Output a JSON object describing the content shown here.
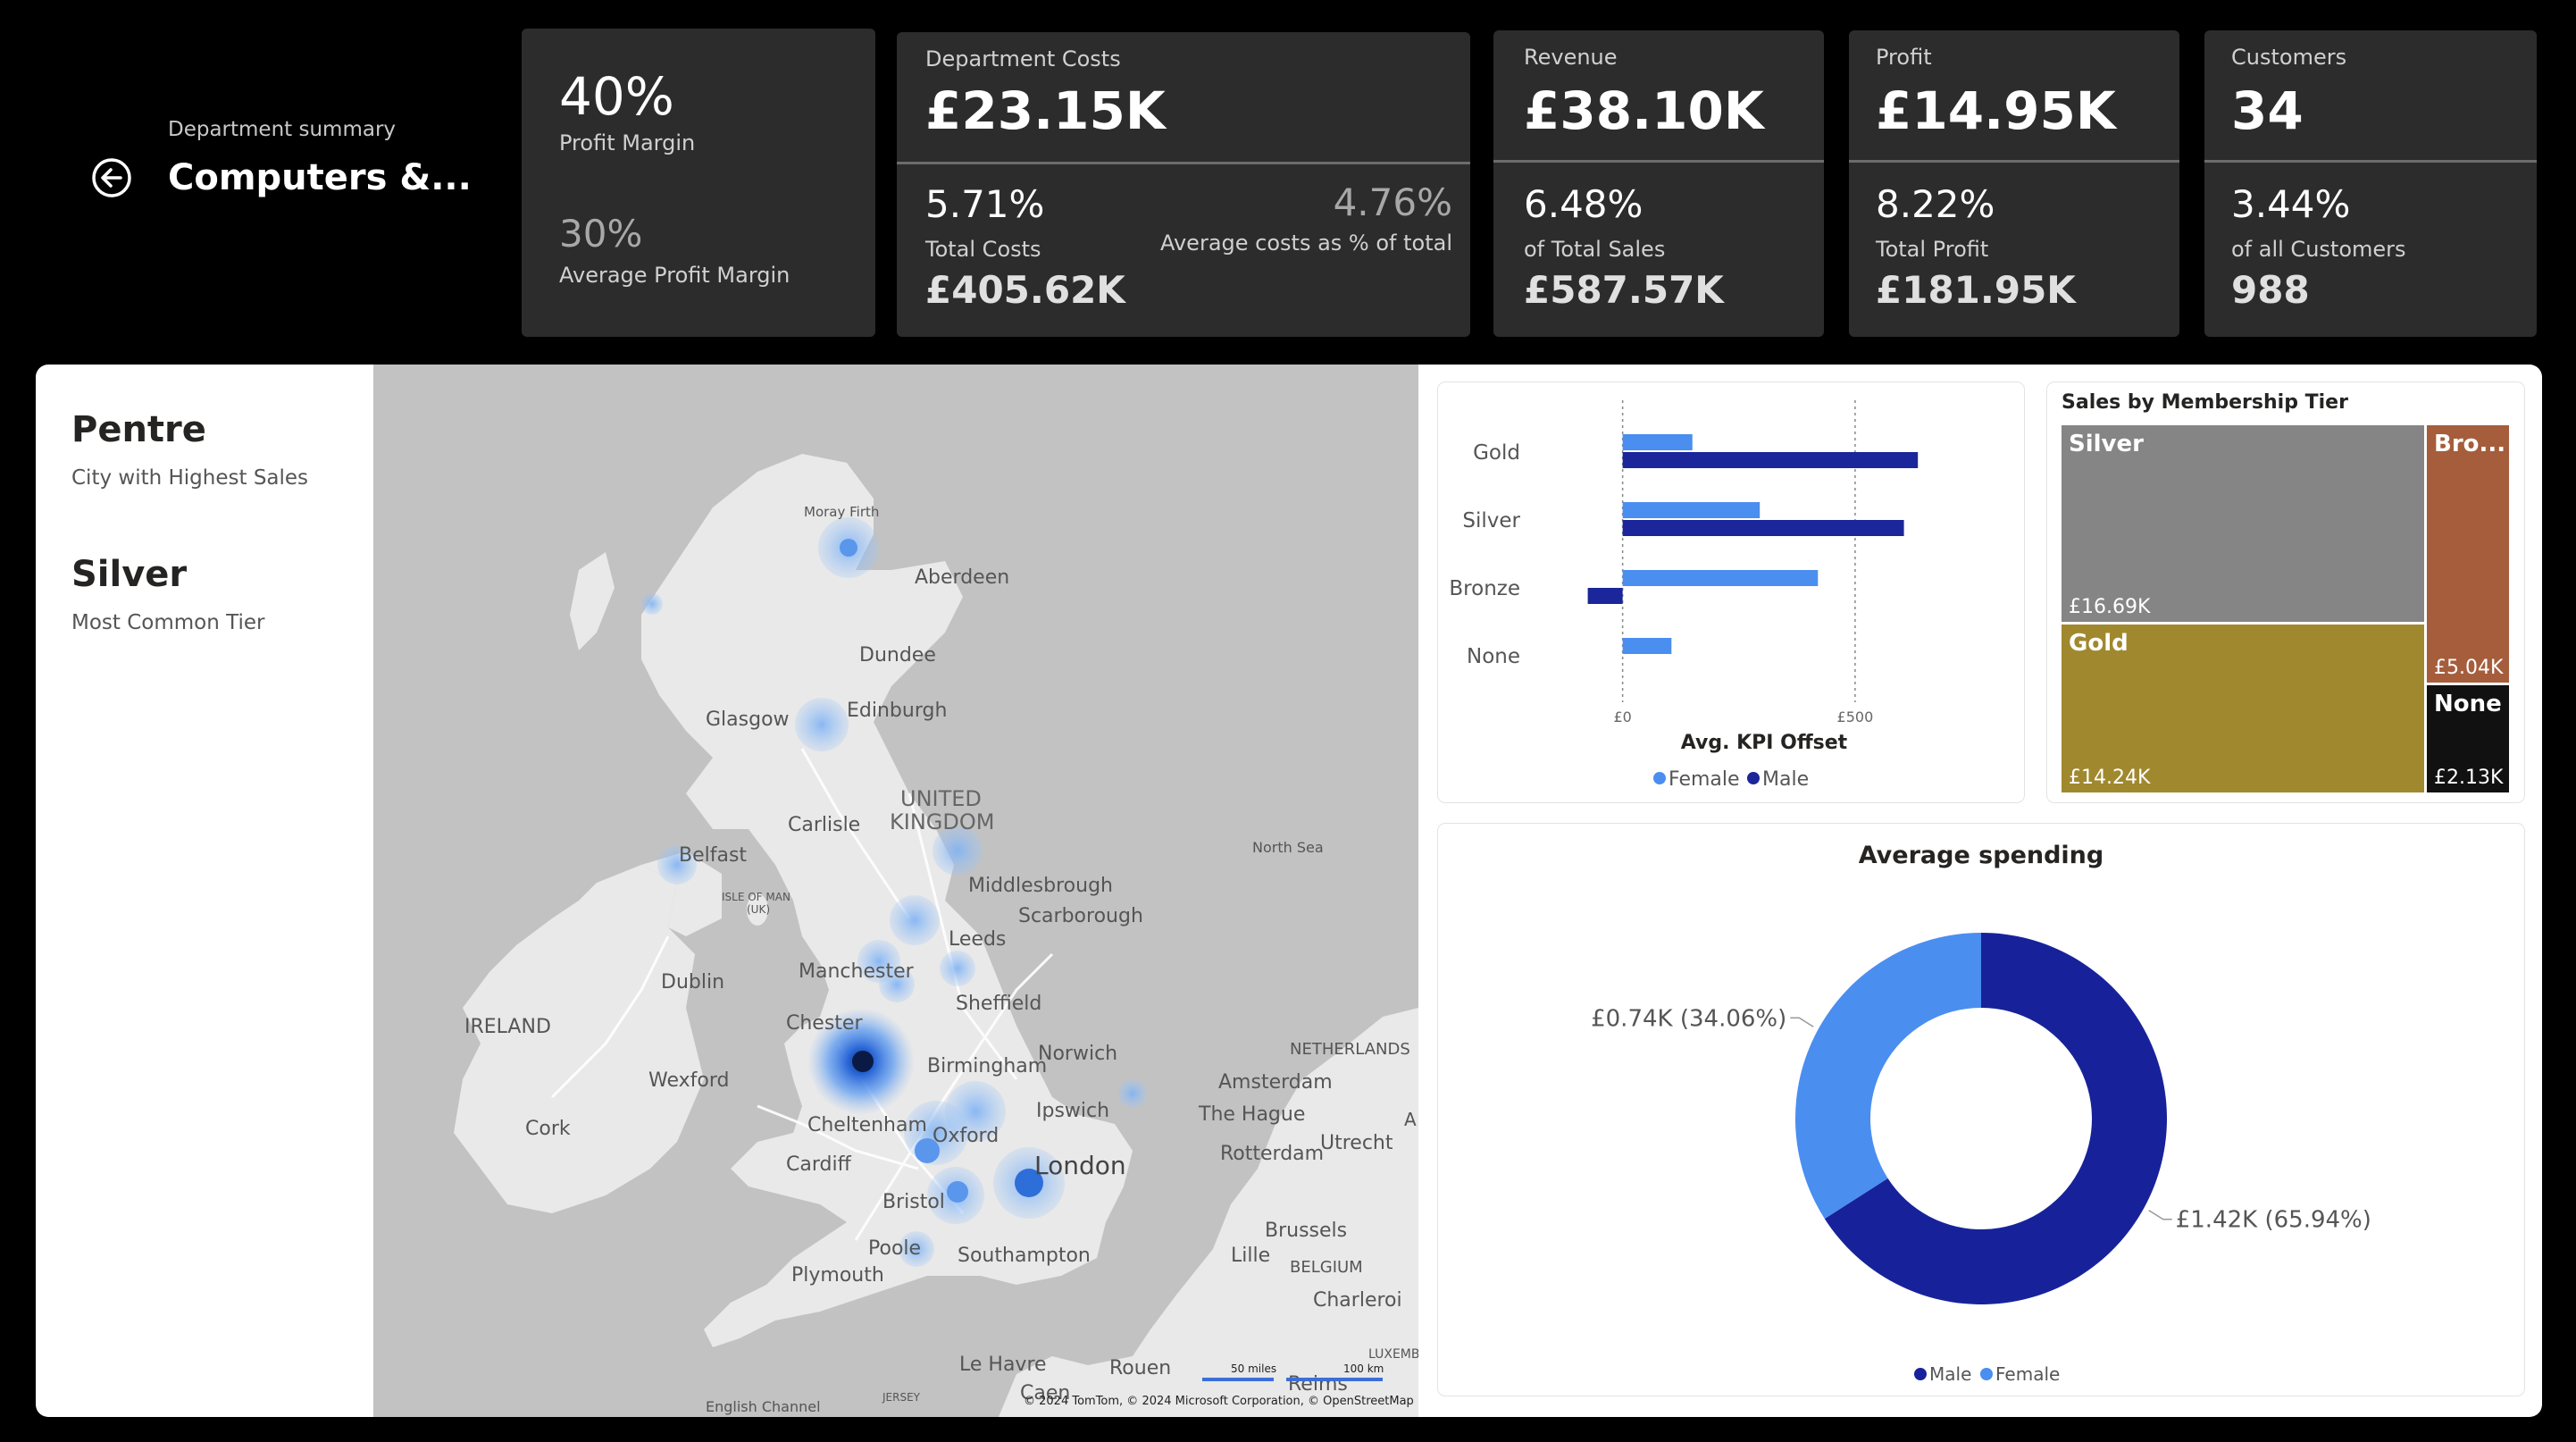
{
  "header": {
    "subtitle": "Department summary",
    "title": "Computers &..."
  },
  "kpi_margin": {
    "value": "40%",
    "label": "Profit Margin",
    "avg_value": "30%",
    "avg_label": "Average Profit Margin"
  },
  "kpi_costs": {
    "title": "Department Costs",
    "value": "£23.15K",
    "pct": "5.71%",
    "pct_label": "Total Costs",
    "total": "£405.62K",
    "avg_pct": "4.76%",
    "avg_label": "Average costs as % of total"
  },
  "kpi_revenue": {
    "title": "Revenue",
    "value": "£38.10K",
    "pct": "6.48%",
    "pct_label": "of Total Sales",
    "total": "£587.57K"
  },
  "kpi_profit": {
    "title": "Profit",
    "value": "£14.95K",
    "pct": "8.22%",
    "pct_label": "Total Profit",
    "total": "£181.95K"
  },
  "kpi_customers": {
    "title": "Customers",
    "value": "34",
    "pct": "3.44%",
    "pct_label": "of all Customers",
    "total": "988"
  },
  "highlights": {
    "city": "Pentre",
    "city_label": "City with Highest Sales",
    "tier": "Silver",
    "tier_label": "Most Common Tier"
  },
  "map": {
    "labels": {
      "moray": "Moray Firth",
      "aberdeen": "Aberdeen",
      "dundee": "Dundee",
      "glasgow": "Glasgow",
      "edinburgh": "Edinburgh",
      "uk": "UNITED",
      "uk2": "KINGDOM",
      "carlisle": "Carlisle",
      "belfast": "Belfast",
      "isle": "ISLE OF MAN",
      "isle2": "(UK)",
      "middlesbrough": "Middlesbrough",
      "scarborough": "Scarborough",
      "leeds": "Leeds",
      "dublin": "Dublin",
      "manchester": "Manchester",
      "sheffield": "Sheffield",
      "ireland": "IRELAND",
      "chester": "Chester",
      "norwich": "Norwich",
      "birmingham": "Birmingham",
      "wexford": "Wexford",
      "cork": "Cork",
      "ipswich": "Ipswich",
      "cheltenham": "Cheltenham",
      "oxford": "Oxford",
      "cardiff": "Cardiff",
      "london": "London",
      "bristol": "Bristol",
      "poole": "Poole",
      "southampton": "Southampton",
      "plymouth": "Plymouth",
      "northsea": "North Sea",
      "netherlands": "NETHERLANDS",
      "amsterdam": "Amsterdam",
      "hague": "The Hague",
      "utrecht": "Utrecht",
      "rotterdam": "Rotterdam",
      "brussels": "Brussels",
      "belgium": "BELGIUM",
      "lille": "Lille",
      "charleroi": "Charleroi",
      "lehavre": "Le Havre",
      "rouen": "Rouen",
      "caen": "Caen",
      "reims": "Reims",
      "english_channel": "English Channel",
      "jersey": "JERSEY",
      "luxem": "LUXEMB",
      "a": "A"
    },
    "scale1": "50 miles",
    "scale2": "100 km",
    "attribution": "© 2024 TomTom, © 2024 Microsoft Corporation, © OpenStreetMap"
  },
  "kpi_offset_chart": {
    "chart_data": {
      "type": "bar",
      "orientation": "horizontal",
      "categories": [
        "Gold",
        "Silver",
        "Bronze",
        "None"
      ],
      "series": [
        {
          "name": "Female",
          "color": "#4a8ef0",
          "values": [
            150,
            295,
            420,
            105
          ]
        },
        {
          "name": "Male",
          "color": "#1a2699",
          "values": [
            635,
            605,
            -75,
            0
          ]
        }
      ],
      "xlim": [
        -80,
        650
      ],
      "ticks": [
        {
          "v": 0,
          "label": "£0"
        },
        {
          "v": 500,
          "label": "£500"
        }
      ],
      "xlabel": "Avg. KPI Offset",
      "grid": true,
      "legend": "bottom"
    }
  },
  "treemap": {
    "title": "Sales by Membership Tier",
    "chart_data": {
      "type": "treemap",
      "items": [
        {
          "label": "Silver",
          "value_label": "£16.69K",
          "value": 16.69,
          "color": "#858585"
        },
        {
          "label": "Gold",
          "value_label": "£14.24K",
          "value": 14.24,
          "color": "#a0882e"
        },
        {
          "label": "Bro...",
          "value_label": "£5.04K",
          "value": 5.04,
          "color": "#a55d3c"
        },
        {
          "label": "None",
          "value_label": "£2.13K",
          "value": 2.13,
          "color": "#111111"
        }
      ]
    }
  },
  "donut": {
    "chart_data": {
      "type": "pie",
      "title": "Average spending",
      "slices": [
        {
          "name": "Male",
          "value": 65.94,
          "label": "£1.42K (65.94%)",
          "color": "#17229a"
        },
        {
          "name": "Female",
          "value": 34.06,
          "label": "£0.74K (34.06%)",
          "color": "#4a8ef0"
        }
      ],
      "legend": "bottom"
    }
  }
}
